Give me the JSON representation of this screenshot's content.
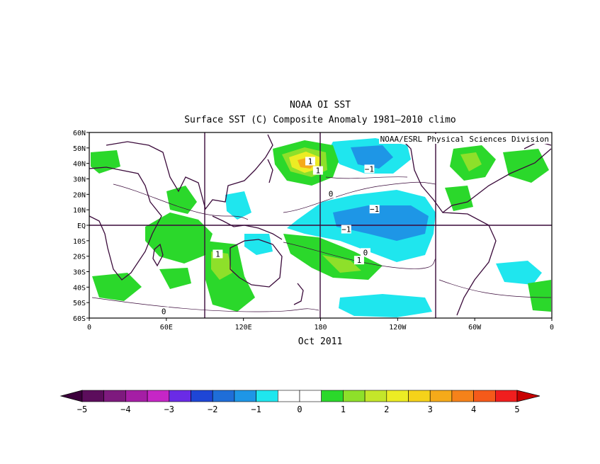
{
  "header": {
    "title": "NOAA OI SST",
    "subtitle": "Surface SST (C) Composite Anomaly 1981—2010 climo",
    "credit": "NOAA/ESRL Physical Sciences Division"
  },
  "map": {
    "date_label": "Oct 2011",
    "lat_range": [
      -60,
      60
    ],
    "lon_range": [
      0,
      360
    ],
    "grid": "on",
    "lat_ticks": [
      "60N",
      "50N",
      "40N",
      "30N",
      "20N",
      "10N",
      "EQ",
      "10S",
      "20S",
      "30S",
      "40S",
      "50S",
      "60S"
    ],
    "lon_ticks": [
      "0",
      "60E",
      "120E",
      "180",
      "120W",
      "60W",
      "0"
    ],
    "contour_labels": [
      {
        "text": "1",
        "lon": 172,
        "lat": 41
      },
      {
        "text": "1",
        "lon": 178,
        "lat": 35
      },
      {
        "text": "−1",
        "lon": 218,
        "lat": 36
      },
      {
        "text": "0",
        "lon": 188,
        "lat": 20
      },
      {
        "text": "−1",
        "lon": 222,
        "lat": 10
      },
      {
        "text": "−1",
        "lon": 200,
        "lat": -3
      },
      {
        "text": "0",
        "lon": 215,
        "lat": -18
      },
      {
        "text": "1",
        "lon": 210,
        "lat": -23
      },
      {
        "text": "1",
        "lon": 100,
        "lat": -19
      },
      {
        "text": "0",
        "lon": 58,
        "lat": -56
      }
    ]
  },
  "colorbar": {
    "labels": [
      "−5",
      "−4",
      "−3",
      "−2",
      "−1",
      "0",
      "1",
      "2",
      "3",
      "4",
      "5"
    ],
    "colors": [
      "#5c0d5c",
      "#7e1a7e",
      "#a51ea5",
      "#c626c6",
      "#6a2be6",
      "#1e46d6",
      "#1f6ed8",
      "#1e96e6",
      "#1fe6ee",
      "#ffffff",
      "#ffffff",
      "#2bd82b",
      "#8ee02a",
      "#c4e62a",
      "#ecec24",
      "#f5d21a",
      "#f5aa1a",
      "#f5821a",
      "#f55a1a",
      "#f01e1e"
    ],
    "low_arrow_color": "#3c003c",
    "high_arrow_color": "#c80000"
  },
  "colors": {
    "land_outline": "#3a0a3a",
    "warm_fill": "#2bd82b",
    "warm2_fill": "#8ee02a",
    "warm3_fill": "#c4e62a",
    "warm4_fill": "#ecec24",
    "warm5_fill": "#f5aa1a",
    "cool_fill": "#1fe6ee",
    "cool2_fill": "#1e96e6",
    "cool3_fill": "#1f6ed8"
  }
}
